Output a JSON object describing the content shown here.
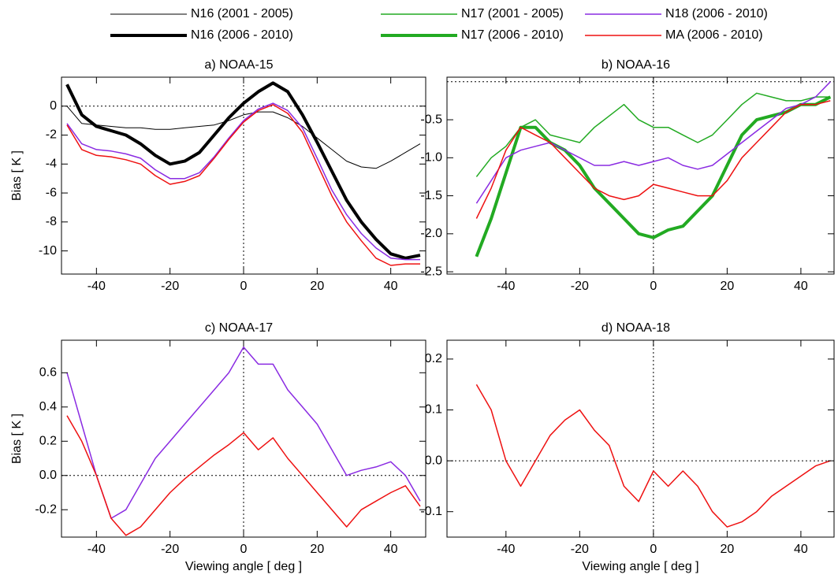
{
  "chart_data": [
    {
      "type": "line",
      "title": "a)  NOAA-15",
      "y_label": "Bias [  K  ]",
      "x": [
        -48,
        -44,
        -40,
        -36,
        -32,
        -28,
        -24,
        -20,
        -16,
        -12,
        -8,
        -4,
        0,
        4,
        8,
        12,
        16,
        20,
        24,
        28,
        32,
        36,
        40,
        44,
        48
      ],
      "xlim": [
        -49.5,
        49.5
      ],
      "ylim": [
        -11.6,
        2
      ],
      "xticks": [
        -40,
        -20,
        0,
        20,
        40
      ],
      "yticks": [
        -10,
        -8,
        -6,
        -4,
        -2,
        0
      ],
      "zero_lines": true,
      "series": [
        {
          "name": "N16 (2001 - 2005)",
          "color": "#000000",
          "width": 1,
          "values": [
            0,
            -1.2,
            -1.3,
            -1.4,
            -1.5,
            -1.5,
            -1.6,
            -1.6,
            -1.5,
            -1.4,
            -1.3,
            -1.0,
            -0.6,
            -0.4,
            -0.4,
            -0.8,
            -1.4,
            -2.2,
            -3.0,
            -3.8,
            -4.2,
            -4.3,
            -3.8,
            -3.2,
            -2.6
          ]
        },
        {
          "name": "N16 (2006 - 2010)",
          "color": "#000000",
          "width": 4,
          "values": [
            1.5,
            -0.6,
            -1.4,
            -1.7,
            -2.0,
            -2.6,
            -3.4,
            -4.0,
            -3.8,
            -3.2,
            -2.0,
            -0.8,
            0.2,
            1.0,
            1.6,
            1.0,
            -0.6,
            -2.5,
            -4.5,
            -6.5,
            -8.0,
            -9.2,
            -10.2,
            -10.5,
            -10.3
          ]
        },
        {
          "name": "N18 (2006 - 2010)",
          "color": "#8a2be2",
          "width": 1.5,
          "values": [
            -1.2,
            -2.6,
            -3.0,
            -3.1,
            -3.3,
            -3.6,
            -4.4,
            -5.0,
            -5.0,
            -4.6,
            -3.5,
            -2.2,
            -1.0,
            -0.2,
            0.2,
            -0.3,
            -1.5,
            -3.6,
            -5.8,
            -7.5,
            -8.8,
            -9.8,
            -10.5,
            -10.6,
            -10.6
          ]
        },
        {
          "name": "MA (2006 - 2010)",
          "color": "#ee1111",
          "width": 1.5,
          "values": [
            -1.3,
            -3.0,
            -3.4,
            -3.5,
            -3.7,
            -4.0,
            -4.8,
            -5.4,
            -5.2,
            -4.8,
            -3.6,
            -2.3,
            -1.1,
            -0.3,
            0.1,
            -0.5,
            -1.8,
            -4.0,
            -6.2,
            -8.0,
            -9.3,
            -10.5,
            -11.0,
            -10.9,
            -10.9
          ]
        }
      ]
    },
    {
      "type": "line",
      "title": "b)  NOAA-16",
      "x": [
        -48,
        -44,
        -40,
        -36,
        -32,
        -28,
        -24,
        -20,
        -16,
        -12,
        -8,
        -4,
        0,
        4,
        8,
        12,
        16,
        20,
        24,
        28,
        32,
        36,
        40,
        44,
        48
      ],
      "xlim": [
        -56,
        49
      ],
      "ylim": [
        -2.53,
        0.06
      ],
      "xticks": [
        -40,
        -20,
        0,
        20,
        40
      ],
      "yticks": [
        -2.5,
        {
          "value": -2,
          "label": "-2.0"
        },
        -1.5,
        {
          "value": -1,
          "label": "-1.0"
        },
        -0.5
      ],
      "zero_lines": true,
      "series": [
        {
          "name": "N17 (2001 - 2005)",
          "color": "#22aa22",
          "width": 1.5,
          "values": [
            -1.25,
            -1.0,
            -0.85,
            -0.6,
            -0.5,
            -0.7,
            -0.75,
            -0.8,
            -0.6,
            -0.45,
            -0.3,
            -0.5,
            -0.6,
            -0.6,
            -0.7,
            -0.8,
            -0.7,
            -0.5,
            -0.3,
            -0.15,
            -0.2,
            -0.25,
            -0.25,
            -0.2,
            -0.2
          ]
        },
        {
          "name": "N17 (2006 - 2010)",
          "color": "#22aa22",
          "width": 4,
          "values": [
            -2.3,
            -1.8,
            -1.2,
            -0.6,
            -0.6,
            -0.8,
            -0.9,
            -1.1,
            -1.4,
            -1.6,
            -1.8,
            -2.0,
            -2.05,
            -1.95,
            -1.9,
            -1.7,
            -1.5,
            -1.1,
            -0.7,
            -0.5,
            -0.45,
            -0.4,
            -0.3,
            -0.3,
            -0.2
          ]
        },
        {
          "name": "N18 (2006 - 2010)",
          "color": "#8a2be2",
          "width": 1.5,
          "values": [
            -1.6,
            -1.3,
            -1.0,
            -0.9,
            -0.85,
            -0.8,
            -0.9,
            -1.0,
            -1.1,
            -1.1,
            -1.05,
            -1.1,
            -1.05,
            -1.0,
            -1.1,
            -1.15,
            -1.1,
            -0.95,
            -0.8,
            -0.65,
            -0.5,
            -0.35,
            -0.3,
            -0.2,
            0
          ]
        },
        {
          "name": "MA (2006 - 2010)",
          "color": "#ee1111",
          "width": 1.5,
          "values": [
            -1.8,
            -1.4,
            -0.9,
            -0.6,
            -0.7,
            -0.8,
            -1.0,
            -1.2,
            -1.4,
            -1.5,
            -1.55,
            -1.5,
            -1.35,
            -1.4,
            -1.45,
            -1.5,
            -1.5,
            -1.3,
            -1.0,
            -0.8,
            -0.6,
            -0.4,
            -0.3,
            -0.3,
            -0.25
          ]
        }
      ]
    },
    {
      "type": "line",
      "title": "c)  NOAA-17",
      "y_label": "Bias [  K  ]",
      "x_label": "Viewing angle [ deg ]",
      "x": [
        -48,
        -44,
        -40,
        -36,
        -32,
        -28,
        -24,
        -20,
        -16,
        -12,
        -8,
        -4,
        0,
        4,
        8,
        12,
        16,
        20,
        24,
        28,
        32,
        36,
        40,
        44,
        48
      ],
      "xlim": [
        -49.5,
        49.5
      ],
      "ylim": [
        -0.36,
        0.79
      ],
      "xticks": [
        -40,
        -20,
        0,
        20,
        40
      ],
      "yticks": [
        -0.2,
        {
          "value": 0,
          "label": "0.0"
        },
        0.2,
        0.4,
        0.6
      ],
      "zero_lines": true,
      "series": [
        {
          "name": "N18 (2006 - 2010)",
          "color": "#8a2be2",
          "width": 1.5,
          "values": [
            0.6,
            0.3,
            0,
            -0.25,
            -0.2,
            -0.05,
            0.1,
            0.2,
            0.3,
            0.4,
            0.5,
            0.6,
            0.75,
            0.65,
            0.65,
            0.5,
            0.4,
            0.3,
            0.15,
            0,
            0.03,
            0.05,
            0.08,
            0,
            -0.15
          ]
        },
        {
          "name": "MA (2006 - 2010)",
          "color": "#ee1111",
          "width": 1.5,
          "values": [
            0.35,
            0.2,
            0,
            -0.25,
            -0.35,
            -0.3,
            -0.2,
            -0.1,
            -0.02,
            0.05,
            0.12,
            0.18,
            0.25,
            0.15,
            0.22,
            0.1,
            0,
            -0.1,
            -0.2,
            -0.3,
            -0.2,
            -0.15,
            -0.1,
            -0.06,
            -0.18
          ]
        }
      ]
    },
    {
      "type": "line",
      "title": "d)  NOAA-18",
      "x_label": "Viewing angle [ deg ]",
      "x": [
        -48,
        -44,
        -40,
        -36,
        -32,
        -28,
        -24,
        -20,
        -16,
        -12,
        -8,
        -4,
        0,
        4,
        8,
        12,
        16,
        20,
        24,
        28,
        32,
        36,
        40,
        44,
        48
      ],
      "xlim": [
        -56,
        49
      ],
      "ylim": [
        -0.15,
        0.237
      ],
      "xticks": [
        -40,
        -20,
        0,
        20,
        40
      ],
      "yticks": [
        -0.1,
        {
          "value": 0,
          "label": "0.0"
        },
        0.1,
        0.2
      ],
      "zero_lines": true,
      "series": [
        {
          "name": "MA (2006 - 2010)",
          "color": "#ee1111",
          "width": 1.5,
          "values": [
            0.15,
            0.1,
            0,
            -0.05,
            0,
            0.05,
            0.08,
            0.1,
            0.06,
            0.03,
            -0.05,
            -0.08,
            -0.02,
            -0.05,
            -0.02,
            -0.05,
            -0.1,
            -0.13,
            -0.12,
            -0.1,
            -0.07,
            -0.05,
            -0.03,
            -0.01,
            0
          ]
        }
      ]
    }
  ]
}
